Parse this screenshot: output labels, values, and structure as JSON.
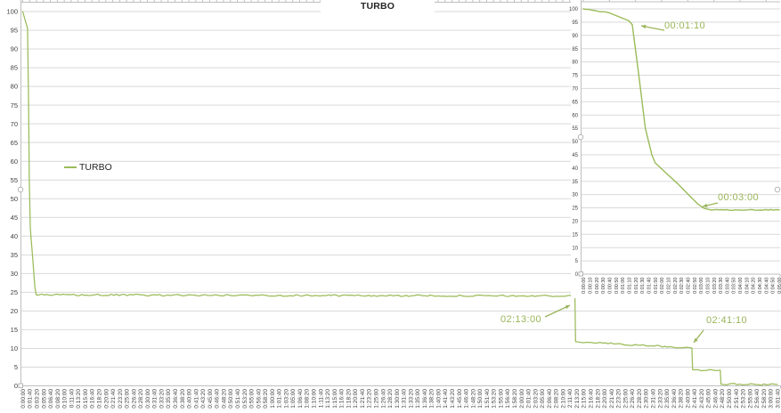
{
  "page": {
    "background": "#ffffff"
  },
  "colors": {
    "series_green": "#9BBB59",
    "annotation_green": "#9AB55A",
    "gridline": "#D9D9D9",
    "axis_line": "#BFBFBF",
    "tick_label": "#3F3F3F",
    "title_text": "#262626"
  },
  "chart_data": [
    {
      "id": "main",
      "type": "line",
      "title": "TURBO",
      "legend": {
        "position": "left-middle",
        "entries": [
          {
            "label": "TURBO",
            "color": "#9BBB59"
          }
        ]
      },
      "grid": "horizontal",
      "ylim": [
        0,
        100
      ],
      "y_ticks": [
        0,
        5,
        10,
        15,
        20,
        25,
        30,
        35,
        40,
        45,
        50,
        55,
        60,
        65,
        70,
        75,
        80,
        85,
        90,
        95,
        100
      ],
      "x_range_seconds": [
        0,
        10900
      ],
      "x_tick_interval_seconds": 100,
      "x_tick_labels": [
        "0:00:00",
        "0:01:40",
        "0:03:20",
        "0:05:00",
        "0:06:40",
        "0:08:20",
        "0:10:00",
        "0:11:40",
        "0:13:20",
        "0:15:00",
        "0:16:40",
        "0:18:20",
        "0:20:00",
        "0:21:40",
        "0:23:20",
        "0:25:00",
        "0:26:40",
        "0:28:20",
        "0:30:00",
        "0:31:40",
        "0:33:20",
        "0:35:00",
        "0:36:40",
        "0:38:20",
        "0:40:00",
        "0:41:40",
        "0:43:20",
        "0:45:00",
        "0:46:40",
        "0:48:20",
        "0:50:00",
        "0:51:40",
        "0:53:20",
        "0:55:00",
        "0:56:40",
        "0:58:20",
        "1:00:00",
        "1:01:40",
        "1:03:20",
        "1:05:00",
        "1:06:40",
        "1:08:20",
        "1:10:00",
        "1:11:40",
        "1:13:20",
        "1:15:00",
        "1:16:40",
        "1:18:20",
        "1:20:00",
        "1:21:40",
        "1:23:20",
        "1:25:00",
        "1:26:40",
        "1:28:20",
        "1:30:00",
        "1:31:40",
        "1:33:20",
        "1:35:00",
        "1:36:40",
        "1:38:20",
        "1:40:00",
        "1:41:40",
        "1:43:20",
        "1:45:00",
        "1:46:40",
        "1:48:20",
        "1:50:00",
        "1:51:40",
        "1:53:20",
        "1:55:00",
        "1:56:40",
        "1:58:20",
        "2:00:00",
        "2:01:40",
        "2:03:20",
        "2:05:00",
        "2:06:40",
        "2:08:20",
        "2:10:00",
        "2:11:40",
        "2:13:20",
        "2:15:00",
        "2:16:40",
        "2:18:20",
        "2:20:00",
        "2:21:40",
        "2:23:20",
        "2:25:00",
        "2:26:40",
        "2:28:20",
        "2:30:00",
        "2:31:40",
        "2:33:20",
        "2:35:00",
        "2:36:40",
        "2:38:20",
        "2:40:00",
        "2:41:40",
        "2:43:20",
        "2:45:00",
        "2:46:40",
        "2:48:20",
        "2:50:00",
        "2:51:40",
        "2:53:20",
        "2:55:00",
        "2:56:40",
        "2:58:20",
        "3:00:00",
        "3:01:40"
      ],
      "series": [
        {
          "name": "TURBO",
          "color": "#9BBB59",
          "points": [
            [
              0,
              100
            ],
            [
              70,
              95.5
            ],
            [
              85,
              75
            ],
            [
              95,
              55
            ],
            [
              110,
              42
            ],
            [
              145,
              34
            ],
            [
              175,
              26.5
            ],
            [
              195,
              24.3
            ],
            [
              7975,
              24.0
            ],
            [
              7985,
              11.8
            ],
            [
              9665,
              10.1
            ],
            [
              9675,
              4.3
            ],
            [
              10075,
              4.2
            ],
            [
              10085,
              0.45
            ],
            [
              10900,
              0.35
            ]
          ]
        }
      ],
      "annotations": [
        {
          "label": "02:13:00",
          "t": 7980,
          "v": 24
        },
        {
          "label": "02:41:10",
          "t": 9670,
          "v": 11
        }
      ]
    },
    {
      "id": "inset",
      "type": "line",
      "title": "",
      "grid": "horizontal",
      "ylim": [
        0,
        100
      ],
      "y_ticks": [
        0,
        5,
        10,
        15,
        20,
        25,
        30,
        35,
        40,
        45,
        50,
        55,
        60,
        65,
        70,
        75,
        80,
        85,
        90,
        95,
        100
      ],
      "x_range_seconds": [
        0,
        300
      ],
      "x_tick_interval_seconds": 10,
      "x_tick_labels": [
        "0:00:00",
        "0:00:10",
        "0:00:20",
        "0:00:30",
        "0:00:40",
        "0:00:50",
        "0:01:00",
        "0:01:10",
        "0:01:20",
        "0:01:30",
        "0:01:40",
        "0:01:50",
        "0:02:00",
        "0:02:10",
        "0:02:20",
        "0:02:30",
        "0:02:40",
        "0:02:50",
        "0:03:00",
        "0:03:10",
        "0:03:20",
        "0:03:30",
        "0:03:40",
        "0:03:50",
        "0:04:00",
        "0:04:10",
        "0:04:20",
        "0:04:30",
        "0:04:40",
        "0:04:50",
        "0:05:00"
      ],
      "series": [
        {
          "name": "TURBO",
          "color": "#9BBB59",
          "points": [
            [
              0,
              100
            ],
            [
              40,
              98.5
            ],
            [
              70,
              95.5
            ],
            [
              75,
              94
            ],
            [
              85,
              75
            ],
            [
              95,
              55
            ],
            [
              105,
              45
            ],
            [
              110,
              42
            ],
            [
              125,
              38.5
            ],
            [
              145,
              34
            ],
            [
              165,
              29
            ],
            [
              175,
              26.5
            ],
            [
              185,
              24.8
            ],
            [
              195,
              24.2
            ],
            [
              300,
              24.2
            ]
          ]
        }
      ],
      "annotations": [
        {
          "label": "00:01:10",
          "t": 70,
          "v": 95.5
        },
        {
          "label": "00:03:00",
          "t": 180,
          "v": 25
        }
      ]
    }
  ]
}
